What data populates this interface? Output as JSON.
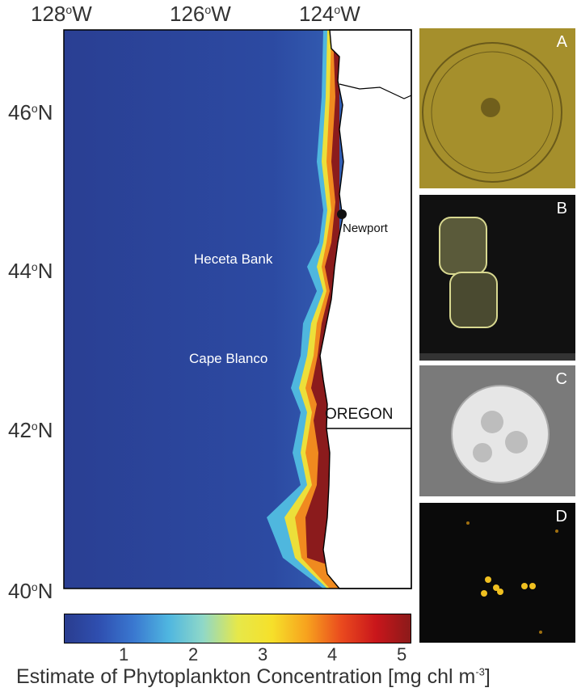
{
  "axes": {
    "lon_labels": [
      {
        "deg": "128",
        "sup": "o",
        "dir": "W"
      },
      {
        "deg": "126",
        "sup": "o",
        "dir": "W"
      },
      {
        "deg": "124",
        "sup": "o",
        "dir": "W"
      }
    ],
    "lat_labels": [
      {
        "deg": "46",
        "sup": "o",
        "dir": "N"
      },
      {
        "deg": "44",
        "sup": "o",
        "dir": "N"
      },
      {
        "deg": "42",
        "sup": "o",
        "dir": "N"
      },
      {
        "deg": "40",
        "sup": "o",
        "dir": "N"
      }
    ]
  },
  "places": {
    "newport": "Newport",
    "heceta": "Heceta Bank",
    "cape_blanco": "Cape Blanco",
    "state": "OREGON"
  },
  "colorbar": {
    "ticks": [
      "1",
      "2",
      "3",
      "4",
      "5"
    ],
    "title_main": "Estimate of Phytoplankton Concentration [mg chl m",
    "title_sup": "-3",
    "title_end": "]",
    "stops": [
      "#2a3d8f",
      "#2f4fb0",
      "#3a78d0",
      "#4fb6e0",
      "#8fd8c8",
      "#e6e84a",
      "#f6e02a",
      "#f7a21e",
      "#ea4a1e",
      "#c9161b",
      "#8b1a1a"
    ]
  },
  "panels": [
    {
      "letter": "A",
      "bg": "#a58f2c"
    },
    {
      "letter": "B",
      "bg": "#111111"
    },
    {
      "letter": "C",
      "bg": "#7a7a7a"
    },
    {
      "letter": "D",
      "bg": "#0a0a0a"
    }
  ],
  "colors": {
    "ocean": "#2b4598",
    "land": "#ffffff",
    "bloom": "#8b1b1c"
  }
}
